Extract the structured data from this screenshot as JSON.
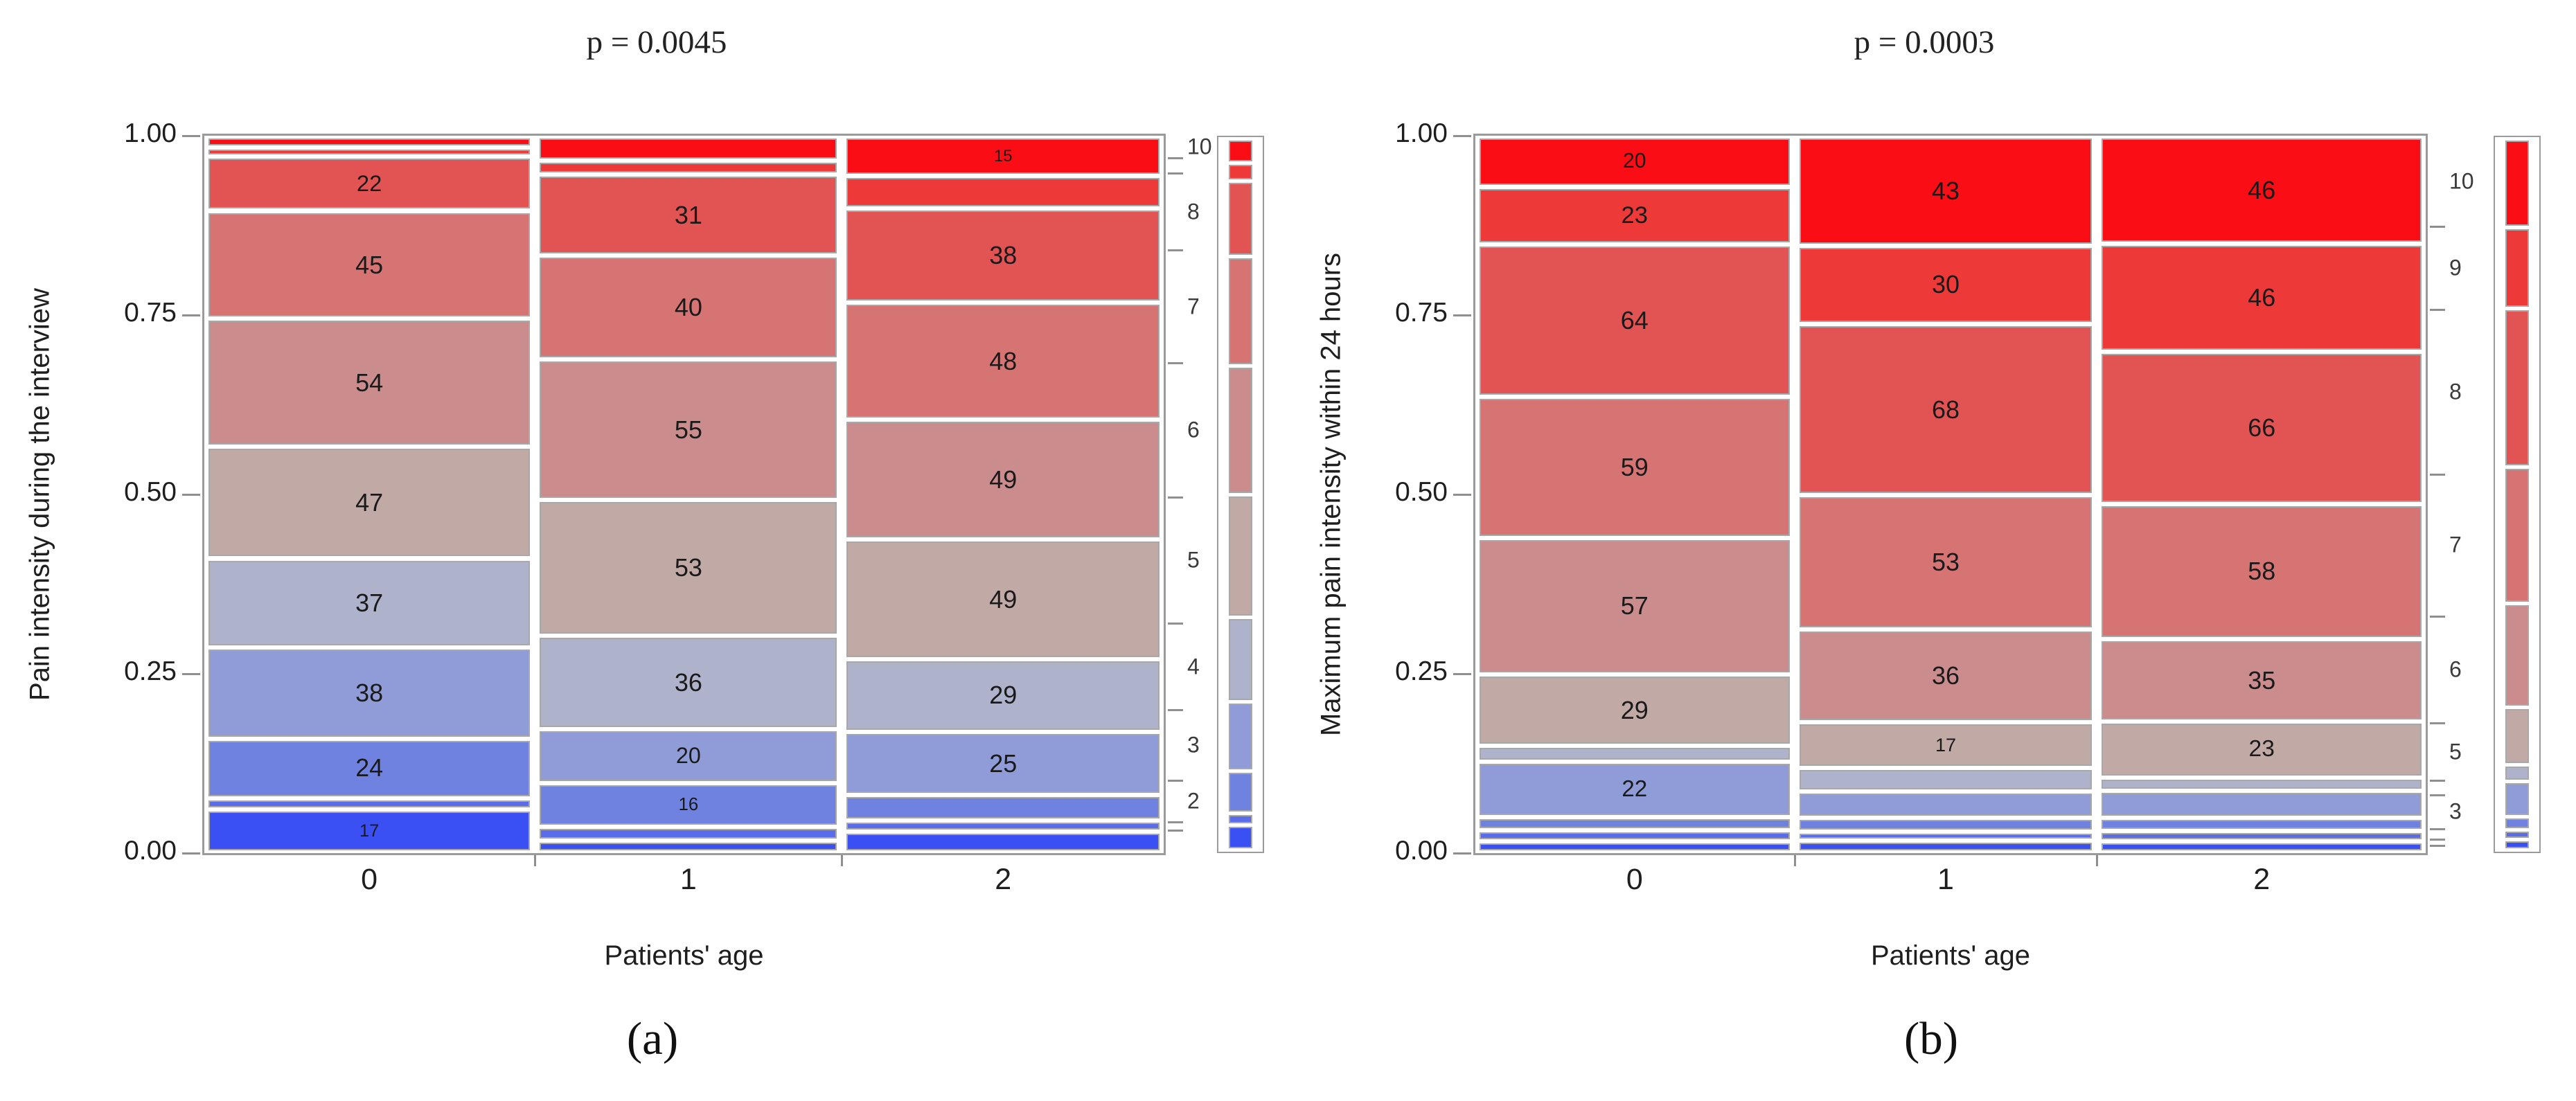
{
  "page": {
    "background": "#ffffff"
  },
  "palette": {
    "0": "#3b50f3",
    "1": "#5b6cea",
    "2": "#7082e0",
    "3": "#8f9cd8",
    "4": "#aeb2ca",
    "5": "#c1a9a5",
    "6": "#ca8c8c",
    "7": "#d67474",
    "8": "#e25353",
    "9": "#ee3939",
    "10": "#fa0d14"
  },
  "style": {
    "cell_border": "#a8a8a8",
    "frame": "#9b9b9b",
    "tick": "#8f8f8f",
    "text": "#1e1e1e",
    "right_axis_text": "#3a3a3a"
  },
  "chart_data": [
    {
      "type": "mosaic",
      "title": "p = 0.0045",
      "caption": "(a)",
      "p_value": "0.0045",
      "xlabel": "Patients' age",
      "ylabel": "Pain intensity during the interview",
      "y_tick_labels": [
        "1.00",
        "0.75",
        "0.50",
        "0.25",
        "0.00"
      ],
      "categories": [
        "0",
        "1",
        "2"
      ],
      "levels_top_to_bottom": [
        10,
        9,
        8,
        7,
        6,
        5,
        4,
        3,
        2,
        1,
        0
      ],
      "right_axis_labels": [
        10,
        8,
        7,
        6,
        5,
        4,
        3,
        2
      ],
      "columns": [
        {
          "category": "0",
          "cells": [
            [
              10,
              3,
              0
            ],
            [
              9,
              2,
              0
            ],
            [
              8,
              22,
              1
            ],
            [
              7,
              45,
              1
            ],
            [
              6,
              54,
              1
            ],
            [
              5,
              47,
              1
            ],
            [
              4,
              37,
              1
            ],
            [
              3,
              38,
              1
            ],
            [
              2,
              24,
              1
            ],
            [
              1,
              3,
              0
            ],
            [
              0,
              17,
              1
            ]
          ]
        },
        {
          "category": "1",
          "cells": [
            [
              10,
              8,
              0
            ],
            [
              9,
              4,
              0
            ],
            [
              8,
              31,
              1
            ],
            [
              7,
              40,
              1
            ],
            [
              6,
              55,
              1
            ],
            [
              5,
              53,
              1
            ],
            [
              4,
              36,
              1
            ],
            [
              3,
              20,
              1
            ],
            [
              2,
              16,
              1
            ],
            [
              1,
              4,
              0
            ],
            [
              0,
              3,
              0
            ]
          ]
        },
        {
          "category": "2",
          "cells": [
            [
              10,
              15,
              1
            ],
            [
              9,
              12,
              0
            ],
            [
              8,
              38,
              1
            ],
            [
              7,
              48,
              1
            ],
            [
              6,
              49,
              1
            ],
            [
              5,
              49,
              1
            ],
            [
              4,
              29,
              1
            ],
            [
              3,
              25,
              1
            ],
            [
              2,
              9,
              0
            ],
            [
              1,
              3,
              0
            ],
            [
              0,
              7,
              0
            ]
          ]
        }
      ]
    },
    {
      "type": "mosaic",
      "title": "p = 0.0003",
      "caption": "(b)",
      "p_value": "0.0003",
      "xlabel": "Patients' age",
      "ylabel": "Maximum pain intensity within 24 hours",
      "y_tick_labels": [
        "1.00",
        "0.75",
        "0.50",
        "0.25",
        "0.00"
      ],
      "categories": [
        "0",
        "1",
        "2"
      ],
      "levels_top_to_bottom": [
        10,
        9,
        8,
        7,
        6,
        5,
        4,
        3,
        2,
        1,
        0
      ],
      "right_axis_labels": [
        10,
        9,
        8,
        7,
        6,
        5,
        3
      ],
      "columns": [
        {
          "category": "0",
          "cells": [
            [
              10,
              20,
              1
            ],
            [
              9,
              23,
              1
            ],
            [
              8,
              64,
              1
            ],
            [
              7,
              59,
              1
            ],
            [
              6,
              57,
              1
            ],
            [
              5,
              29,
              1
            ],
            [
              4,
              5,
              0
            ],
            [
              3,
              22,
              1
            ],
            [
              2,
              4,
              0
            ],
            [
              1,
              3,
              0
            ],
            [
              0,
              3,
              0
            ]
          ]
        },
        {
          "category": "1",
          "cells": [
            [
              10,
              43,
              1
            ],
            [
              9,
              30,
              1
            ],
            [
              8,
              68,
              1
            ],
            [
              7,
              53,
              1
            ],
            [
              6,
              36,
              1
            ],
            [
              5,
              17,
              1
            ],
            [
              4,
              8,
              0
            ],
            [
              3,
              9,
              0
            ],
            [
              2,
              4,
              0
            ],
            [
              1,
              2,
              0
            ],
            [
              0,
              3,
              0
            ]
          ]
        },
        {
          "category": "2",
          "cells": [
            [
              10,
              46,
              1
            ],
            [
              9,
              46,
              1
            ],
            [
              8,
              66,
              1
            ],
            [
              7,
              58,
              1
            ],
            [
              6,
              35,
              1
            ],
            [
              5,
              23,
              1
            ],
            [
              4,
              4,
              0
            ],
            [
              3,
              10,
              0
            ],
            [
              2,
              4,
              0
            ],
            [
              1,
              3,
              0
            ],
            [
              0,
              3,
              0
            ]
          ]
        }
      ]
    }
  ]
}
